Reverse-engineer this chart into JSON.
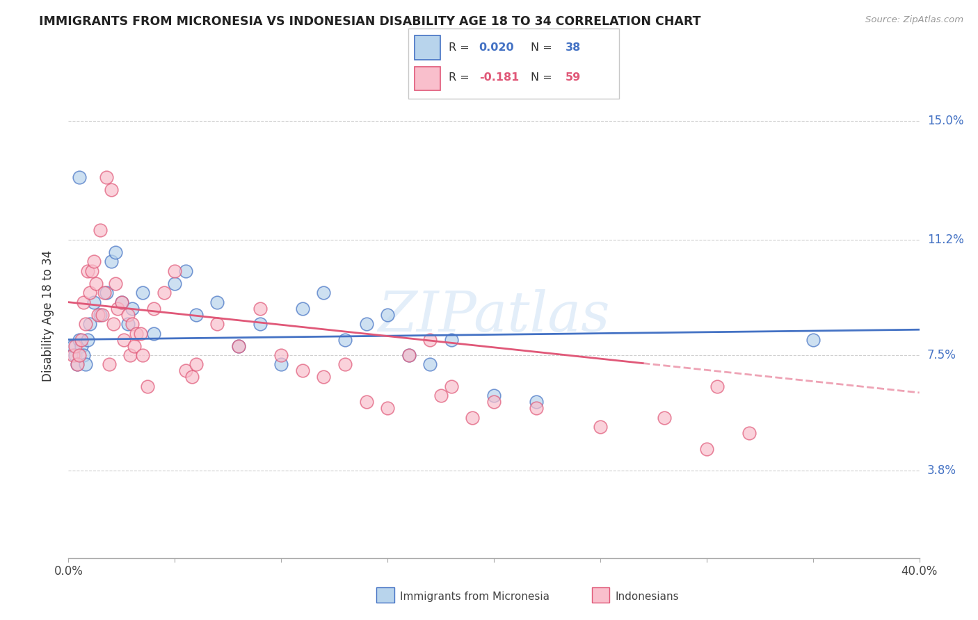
{
  "title": "IMMIGRANTS FROM MICRONESIA VS INDONESIAN DISABILITY AGE 18 TO 34 CORRELATION CHART",
  "source": "Source: ZipAtlas.com",
  "ylabel_label": "Disability Age 18 to 34",
  "ytick_labels": [
    "3.8%",
    "7.5%",
    "11.2%",
    "15.0%"
  ],
  "ytick_values": [
    3.8,
    7.5,
    11.2,
    15.0
  ],
  "xlim": [
    0.0,
    40.0
  ],
  "ylim": [
    1.0,
    16.5
  ],
  "legend_r1": "R = 0.020",
  "legend_n1": "N = 38",
  "legend_r2": "R = -0.181",
  "legend_n2": "N = 59",
  "color_micro": "#b8d4ec",
  "color_indo": "#f9bfcc",
  "line_color_micro": "#4472c4",
  "line_color_indo": "#e05878",
  "watermark": "ZIPatlas",
  "micro_x": [
    0.2,
    0.3,
    0.4,
    0.5,
    0.6,
    0.7,
    0.8,
    0.9,
    1.0,
    1.2,
    1.5,
    1.8,
    2.0,
    2.2,
    2.5,
    2.8,
    3.0,
    3.5,
    4.0,
    5.0,
    6.0,
    7.0,
    8.0,
    9.0,
    10.0,
    11.0,
    12.0,
    13.0,
    14.0,
    15.0,
    16.0,
    17.0,
    18.0,
    20.0,
    22.0,
    35.0,
    5.5,
    0.5
  ],
  "micro_y": [
    7.8,
    7.5,
    7.2,
    8.0,
    7.8,
    7.5,
    7.2,
    8.0,
    8.5,
    9.2,
    8.8,
    9.5,
    10.5,
    10.8,
    9.2,
    8.5,
    9.0,
    9.5,
    8.2,
    9.8,
    8.8,
    9.2,
    7.8,
    8.5,
    7.2,
    9.0,
    9.5,
    8.0,
    8.5,
    8.8,
    7.5,
    7.2,
    8.0,
    6.2,
    6.0,
    8.0,
    10.2,
    13.2
  ],
  "indo_x": [
    0.2,
    0.3,
    0.4,
    0.5,
    0.6,
    0.7,
    0.8,
    0.9,
    1.0,
    1.1,
    1.2,
    1.3,
    1.4,
    1.5,
    1.6,
    1.7,
    1.8,
    1.9,
    2.0,
    2.1,
    2.2,
    2.3,
    2.5,
    2.6,
    2.8,
    2.9,
    3.0,
    3.1,
    3.2,
    3.4,
    3.5,
    3.7,
    4.0,
    4.5,
    5.0,
    5.5,
    5.8,
    6.0,
    7.0,
    8.0,
    9.0,
    10.0,
    11.0,
    12.0,
    13.0,
    14.0,
    15.0,
    16.0,
    17.0,
    17.5,
    18.0,
    19.0,
    20.0,
    22.0,
    25.0,
    28.0,
    30.0,
    30.5,
    32.0
  ],
  "indo_y": [
    7.5,
    7.8,
    7.2,
    7.5,
    8.0,
    9.2,
    8.5,
    10.2,
    9.5,
    10.2,
    10.5,
    9.8,
    8.8,
    11.5,
    8.8,
    9.5,
    13.2,
    7.2,
    12.8,
    8.5,
    9.8,
    9.0,
    9.2,
    8.0,
    8.8,
    7.5,
    8.5,
    7.8,
    8.2,
    8.2,
    7.5,
    6.5,
    9.0,
    9.5,
    10.2,
    7.0,
    6.8,
    7.2,
    8.5,
    7.8,
    9.0,
    7.5,
    7.0,
    6.8,
    7.2,
    6.0,
    5.8,
    7.5,
    8.0,
    6.2,
    6.5,
    5.5,
    6.0,
    5.8,
    5.2,
    5.5,
    4.5,
    6.5,
    5.0
  ],
  "micro_line_x0": 0.0,
  "micro_line_x1": 40.0,
  "micro_line_y0": 8.0,
  "micro_line_y1": 8.32,
  "indo_line_x0": 0.0,
  "indo_line_x1": 40.0,
  "indo_line_y0": 9.2,
  "indo_line_y1": 6.3,
  "indo_dash_start_x": 27.0
}
